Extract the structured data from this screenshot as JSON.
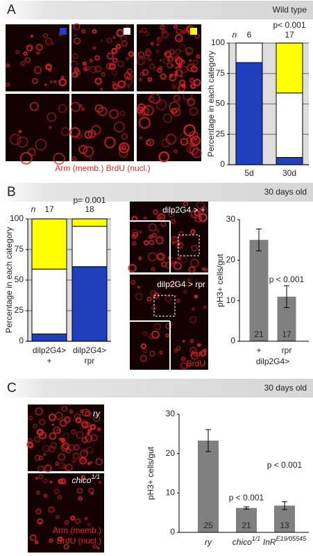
{
  "chart_data": [
    {
      "type": "stacked_bar",
      "y_label": "Percentage in each category",
      "n_label": "n",
      "categories": [
        "5d",
        "30d"
      ],
      "n": [
        6,
        17
      ],
      "p_values": [
        null,
        "p< 0.001"
      ],
      "series": [
        {
          "color": "#1f3fbf",
          "values": [
            84,
            6
          ]
        },
        {
          "color": "#ffffff",
          "values": [
            16,
            53
          ]
        },
        {
          "color": "#ffff00",
          "values": [
            0,
            41
          ]
        }
      ],
      "ylim": [
        0,
        100
      ],
      "yticks": [
        0,
        25,
        50,
        75,
        100
      ],
      "grid": true
    },
    {
      "type": "stacked_bar",
      "y_label": "Percentage in each category",
      "n_label": "n",
      "categories": [
        [
          "dilp2G4>",
          "+"
        ],
        [
          "dilp2G4>",
          "rpr"
        ]
      ],
      "n": [
        17,
        18
      ],
      "p_values": [
        null,
        "p= 0.001"
      ],
      "series": [
        {
          "color": "#1f3fbf",
          "values": [
            6,
            61
          ]
        },
        {
          "color": "#ffffff",
          "values": [
            53,
            33
          ]
        },
        {
          "color": "#ffff00",
          "values": [
            41,
            6
          ]
        }
      ],
      "ylim": [
        0,
        100
      ],
      "yticks": [
        0,
        25,
        50,
        75,
        100
      ],
      "grid": true
    },
    {
      "type": "bar",
      "y_label": "pH3+ cells/gut",
      "categories": [
        "+",
        "rpr"
      ],
      "group_label": "dilp2G4>",
      "values": [
        25,
        11
      ],
      "errors": [
        2.7,
        2.7
      ],
      "n": [
        21,
        17
      ],
      "p_values": [
        null,
        "p < 0.001"
      ],
      "color": "#808080",
      "ylim": [
        0,
        30
      ],
      "yticks": [
        0,
        10,
        20,
        30
      ],
      "grid": false
    },
    {
      "type": "bar",
      "y_label": "pH3+ cells/gut",
      "categories": [
        {
          "base": "ry"
        },
        {
          "base": "chico",
          "sup": "1/1"
        },
        {
          "base": "InR",
          "sup": "E19/05545"
        }
      ],
      "values": [
        23.3,
        6.2,
        6.8
      ],
      "errors": [
        2.8,
        0.3,
        1.0
      ],
      "n": [
        25,
        21,
        13
      ],
      "p_values": [
        null,
        "p < 0.001",
        "p < 0.001"
      ],
      "color": "#808080",
      "ylim": [
        0,
        30
      ],
      "yticks": [
        0,
        10,
        20,
        30
      ],
      "grid": false
    }
  ],
  "panels": [
    {
      "letter": "A",
      "caption": "Wild type",
      "stain_label": "Arm (memb.) BrdU (nucl.)"
    },
    {
      "letter": "B",
      "caption": "30 days old",
      "genotype_labels": [
        "dilp2G4 > +",
        "dilp2G4 > rpr"
      ],
      "stain_labels": [
        "Arm",
        "BrdU"
      ]
    },
    {
      "letter": "C",
      "caption": "30 days old",
      "genotype_labels": [
        {
          "base": "ry"
        },
        {
          "base": "chico",
          "sup": "1/1"
        }
      ],
      "stain_labels": [
        "Arm (memb.)",
        "BrdU (nucl.)"
      ]
    }
  ]
}
